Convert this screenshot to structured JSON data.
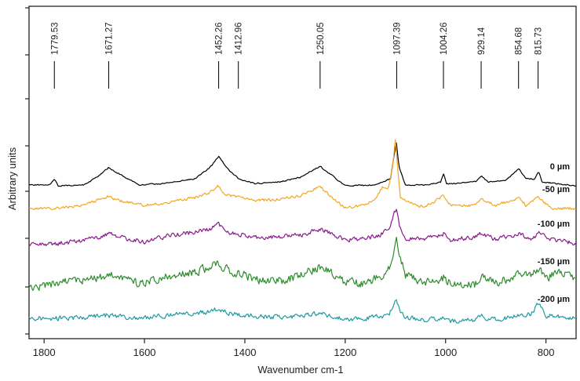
{
  "chart_data": {
    "type": "line",
    "title": "",
    "xlabel": "Wavenumber cm-1",
    "ylabel": "Arbitrary units",
    "xlim": [
      1830,
      740
    ],
    "x_reversed": true,
    "x_ticks": [
      1800,
      1600,
      1400,
      1200,
      1000,
      800
    ],
    "y_tick_labels_shown": false,
    "grid": false,
    "legend": "inline-right",
    "peak_markers": [
      "1779.53",
      "1671.27",
      "1452.26",
      "1412.96",
      "1250.05",
      "1097.39",
      "1004.26",
      "929.14",
      "854.68",
      "815.73"
    ],
    "series": [
      {
        "name": "0 µm",
        "color": "#000000",
        "noise": 0.7,
        "seed": 11,
        "points": [
          [
            1830,
            236
          ],
          [
            1790,
            236
          ],
          [
            1779,
            229
          ],
          [
            1772,
            237
          ],
          [
            1720,
            236
          ],
          [
            1690,
            224
          ],
          [
            1672,
            214
          ],
          [
            1650,
            222
          ],
          [
            1610,
            236
          ],
          [
            1560,
            234
          ],
          [
            1500,
            228
          ],
          [
            1470,
            214
          ],
          [
            1452,
            200
          ],
          [
            1436,
            214
          ],
          [
            1413,
            228
          ],
          [
            1380,
            234
          ],
          [
            1330,
            232
          ],
          [
            1290,
            226
          ],
          [
            1250,
            212
          ],
          [
            1230,
            222
          ],
          [
            1200,
            237
          ],
          [
            1140,
            236
          ],
          [
            1110,
            228
          ],
          [
            1102,
            195
          ],
          [
            1098,
            182
          ],
          [
            1093,
            212
          ],
          [
            1080,
            236
          ],
          [
            1040,
            236
          ],
          [
            1010,
            232
          ],
          [
            1004,
            222
          ],
          [
            998,
            235
          ],
          [
            940,
            232
          ],
          [
            929,
            224
          ],
          [
            915,
            232
          ],
          [
            880,
            230
          ],
          [
            855,
            215
          ],
          [
            840,
            228
          ],
          [
            822,
            228
          ],
          [
            815,
            218
          ],
          [
            808,
            232
          ],
          [
            740,
            237
          ]
        ]
      },
      {
        "name": "-50 µm",
        "color": "#f4a622",
        "noise": 1.6,
        "seed": 23,
        "points": [
          [
            1830,
            266
          ],
          [
            1780,
            266
          ],
          [
            1720,
            262
          ],
          [
            1672,
            250
          ],
          [
            1650,
            256
          ],
          [
            1600,
            262
          ],
          [
            1550,
            258
          ],
          [
            1500,
            252
          ],
          [
            1470,
            246
          ],
          [
            1455,
            236
          ],
          [
            1440,
            248
          ],
          [
            1413,
            252
          ],
          [
            1380,
            256
          ],
          [
            1330,
            254
          ],
          [
            1290,
            250
          ],
          [
            1250,
            238
          ],
          [
            1230,
            250
          ],
          [
            1200,
            265
          ],
          [
            1160,
            262
          ],
          [
            1140,
            254
          ],
          [
            1125,
            238
          ],
          [
            1115,
            242
          ],
          [
            1105,
            210
          ],
          [
            1100,
            178
          ],
          [
            1096,
            210
          ],
          [
            1090,
            252
          ],
          [
            1060,
            262
          ],
          [
            1040,
            264
          ],
          [
            1004,
            250
          ],
          [
            990,
            262
          ],
          [
            940,
            262
          ],
          [
            929,
            254
          ],
          [
            900,
            262
          ],
          [
            855,
            252
          ],
          [
            840,
            262
          ],
          [
            815,
            252
          ],
          [
            790,
            266
          ],
          [
            740,
            266
          ]
        ]
      },
      {
        "name": "-100 µm",
        "color": "#8b1a8b",
        "noise": 2.6,
        "seed": 37,
        "points": [
          [
            1830,
            313
          ],
          [
            1760,
            310
          ],
          [
            1700,
            304
          ],
          [
            1672,
            298
          ],
          [
            1640,
            304
          ],
          [
            1600,
            308
          ],
          [
            1560,
            302
          ],
          [
            1500,
            296
          ],
          [
            1470,
            292
          ],
          [
            1452,
            286
          ],
          [
            1430,
            298
          ],
          [
            1413,
            298
          ],
          [
            1370,
            304
          ],
          [
            1330,
            302
          ],
          [
            1290,
            300
          ],
          [
            1250,
            292
          ],
          [
            1220,
            300
          ],
          [
            1200,
            306
          ],
          [
            1160,
            304
          ],
          [
            1130,
            300
          ],
          [
            1110,
            288
          ],
          [
            1103,
            272
          ],
          [
            1098,
            266
          ],
          [
            1092,
            288
          ],
          [
            1080,
            304
          ],
          [
            1040,
            304
          ],
          [
            1004,
            298
          ],
          [
            990,
            306
          ],
          [
            940,
            302
          ],
          [
            929,
            298
          ],
          [
            900,
            306
          ],
          [
            855,
            298
          ],
          [
            830,
            306
          ],
          [
            815,
            298
          ],
          [
            790,
            306
          ],
          [
            740,
            310
          ]
        ]
      },
      {
        "name": "-150 µm",
        "color": "#2e8b2e",
        "noise": 5.0,
        "seed": 53,
        "points": [
          [
            1830,
            370
          ],
          [
            1780,
            362
          ],
          [
            1720,
            358
          ],
          [
            1672,
            350
          ],
          [
            1640,
            356
          ],
          [
            1610,
            362
          ],
          [
            1560,
            354
          ],
          [
            1500,
            346
          ],
          [
            1470,
            342
          ],
          [
            1452,
            336
          ],
          [
            1430,
            346
          ],
          [
            1413,
            348
          ],
          [
            1370,
            358
          ],
          [
            1330,
            358
          ],
          [
            1290,
            352
          ],
          [
            1250,
            340
          ],
          [
            1220,
            352
          ],
          [
            1200,
            360
          ],
          [
            1160,
            362
          ],
          [
            1130,
            354
          ],
          [
            1112,
            342
          ],
          [
            1103,
            318
          ],
          [
            1098,
            300
          ],
          [
            1092,
            328
          ],
          [
            1080,
            350
          ],
          [
            1040,
            360
          ],
          [
            1004,
            354
          ],
          [
            990,
            362
          ],
          [
            940,
            362
          ],
          [
            929,
            354
          ],
          [
            900,
            362
          ],
          [
            855,
            350
          ],
          [
            830,
            352
          ],
          [
            815,
            342
          ],
          [
            800,
            354
          ],
          [
            770,
            348
          ],
          [
            740,
            358
          ]
        ]
      },
      {
        "name": "-200 µm",
        "color": "#1f9aa0",
        "noise": 2.8,
        "seed": 71,
        "points": [
          [
            1830,
            406
          ],
          [
            1760,
            406
          ],
          [
            1700,
            404
          ],
          [
            1672,
            402
          ],
          [
            1630,
            406
          ],
          [
            1580,
            404
          ],
          [
            1520,
            400
          ],
          [
            1470,
            398
          ],
          [
            1452,
            394
          ],
          [
            1430,
            400
          ],
          [
            1413,
            402
          ],
          [
            1370,
            404
          ],
          [
            1330,
            404
          ],
          [
            1290,
            404
          ],
          [
            1250,
            400
          ],
          [
            1220,
            404
          ],
          [
            1200,
            408
          ],
          [
            1160,
            406
          ],
          [
            1130,
            404
          ],
          [
            1112,
            400
          ],
          [
            1103,
            388
          ],
          [
            1098,
            380
          ],
          [
            1092,
            396
          ],
          [
            1080,
            404
          ],
          [
            1040,
            408
          ],
          [
            1004,
            406
          ],
          [
            990,
            410
          ],
          [
            940,
            408
          ],
          [
            929,
            404
          ],
          [
            900,
            408
          ],
          [
            855,
            402
          ],
          [
            830,
            400
          ],
          [
            815,
            388
          ],
          [
            800,
            402
          ],
          [
            770,
            404
          ],
          [
            740,
            406
          ]
        ]
      }
    ]
  }
}
